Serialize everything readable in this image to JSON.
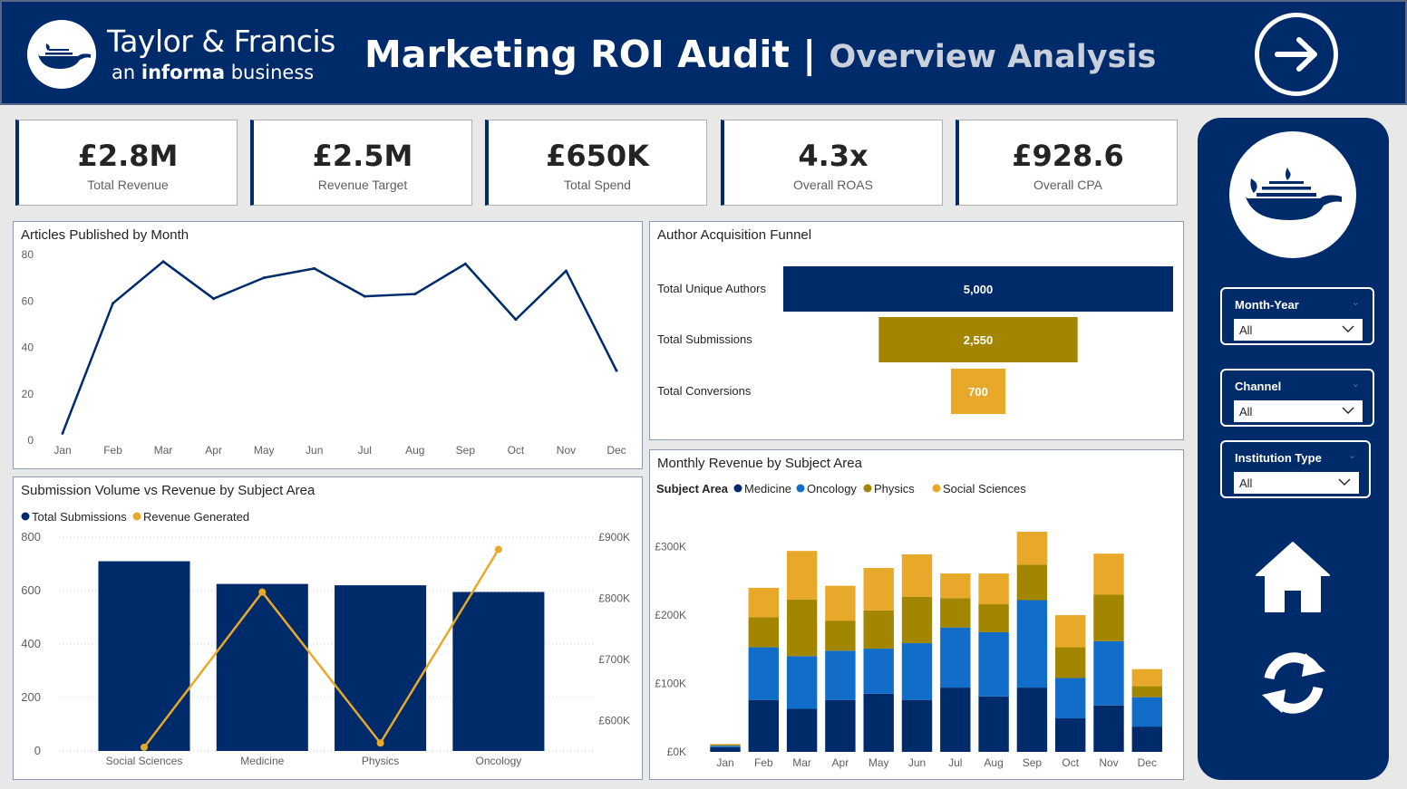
{
  "header": {
    "brand_name": "Taylor & Francis",
    "brand_sub_prefix": "an",
    "brand_sub_bold": "informa",
    "brand_sub_suffix": "business",
    "title": "Marketing ROI Audit",
    "separator": "|",
    "subtitle": "Overview Analysis",
    "next_icon": "arrow-right-circle-icon"
  },
  "kpis": [
    {
      "value": "£2.8M",
      "label": "Total Revenue"
    },
    {
      "value": "£2.5M",
      "label": "Revenue Target"
    },
    {
      "value": "£650K",
      "label": "Total Spend"
    },
    {
      "value": "4.3x",
      "label": "Overall ROAS"
    },
    {
      "value": "£928.6",
      "label": "Overall CPA"
    }
  ],
  "sidebar": {
    "slicers": [
      {
        "label": "Month-Year",
        "value": "All"
      },
      {
        "label": "Channel",
        "value": "All"
      },
      {
        "label": "Institution Type",
        "value": "All"
      }
    ],
    "home_icon": "home-icon",
    "refresh_icon": "refresh-icon"
  },
  "colors": {
    "navy": "#002b6a",
    "blue": "#126dc9",
    "olive": "#a38600",
    "orange": "#e8a92a"
  },
  "chart_data": [
    {
      "id": "articles",
      "type": "line",
      "title": "Articles Published by Month",
      "categories": [
        "Jan",
        "Feb",
        "Mar",
        "Apr",
        "May",
        "Jun",
        "Jul",
        "Aug",
        "Sep",
        "Oct",
        "Nov",
        "Dec"
      ],
      "values": [
        3,
        59,
        77,
        61,
        70,
        74,
        62,
        63,
        76,
        52,
        73,
        30
      ],
      "ylim": [
        0,
        80
      ],
      "yticks": [
        0,
        20,
        40,
        60,
        80
      ],
      "grid": false
    },
    {
      "id": "funnel",
      "type": "bar",
      "title": "Author Acquisition Funnel",
      "categories": [
        "Total Unique Authors",
        "Total Submissions",
        "Total Conversions"
      ],
      "values": [
        5000,
        2550,
        700
      ],
      "labels": [
        "5,000",
        "2,550",
        "700"
      ]
    },
    {
      "id": "combo",
      "type": "bar",
      "title": "Submission Volume vs Revenue by Subject Area",
      "categories": [
        "Social Sciences",
        "Medicine",
        "Physics",
        "Oncology"
      ],
      "series": [
        {
          "name": "Total Submissions",
          "type": "bar",
          "values": [
            710,
            625,
            620,
            595
          ]
        },
        {
          "name": "Revenue Generated",
          "type": "line",
          "values": [
            556000,
            810000,
            563000,
            880000
          ]
        }
      ],
      "ylim": [
        0,
        800
      ],
      "yticks": [
        0,
        200,
        400,
        600,
        800
      ],
      "y2lim": [
        550000,
        900000
      ],
      "y2ticks": [
        "£600K",
        "£700K",
        "£800K",
        "£900K"
      ],
      "y2tick_values": [
        600000,
        700000,
        800000,
        900000
      ],
      "legend": "top-left"
    },
    {
      "id": "monthly",
      "type": "bar",
      "stacked": true,
      "title": "Monthly Revenue by Subject Area",
      "legend_title": "Subject Area",
      "categories": [
        "Jan",
        "Feb",
        "Mar",
        "Apr",
        "May",
        "Jun",
        "Jul",
        "Aug",
        "Sep",
        "Oct",
        "Nov",
        "Dec"
      ],
      "series": [
        {
          "name": "Medicine",
          "values": [
            7000,
            76000,
            63000,
            76000,
            85000,
            76000,
            94000,
            81000,
            94000,
            49000,
            68000,
            37000
          ]
        },
        {
          "name": "Oncology",
          "values": [
            2000,
            77000,
            77000,
            72000,
            66000,
            83000,
            88000,
            94000,
            128000,
            59000,
            94000,
            43000
          ]
        },
        {
          "name": "Physics",
          "values": [
            1500,
            44000,
            83000,
            44000,
            56000,
            68000,
            43000,
            41000,
            52000,
            45000,
            68000,
            16000
          ]
        },
        {
          "name": "Social Sciences",
          "values": [
            1000,
            43000,
            71000,
            51000,
            62000,
            62000,
            36000,
            45000,
            48000,
            47000,
            60000,
            25000
          ]
        }
      ],
      "ylim": [
        0,
        330000
      ],
      "yticks": [
        "£0K",
        "£100K",
        "£200K",
        "£300K"
      ],
      "ytick_values": [
        0,
        100000,
        200000,
        300000
      ],
      "legend": "top-left"
    }
  ]
}
